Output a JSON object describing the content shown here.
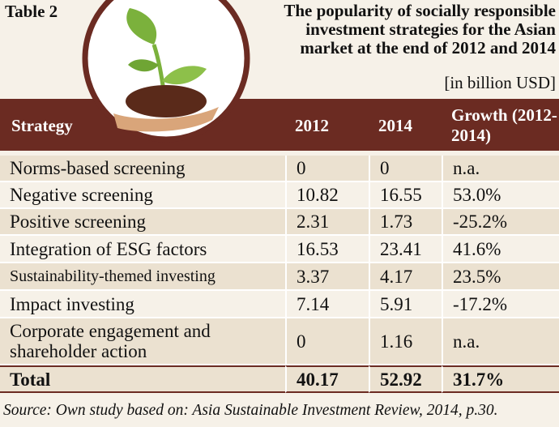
{
  "header": {
    "label": "Table 2",
    "title_lines": [
      "The popularity of socially responsible",
      "investment strategies for the Asian",
      "market at the end of 2012 and 2014"
    ],
    "unit": "[in billion USD]"
  },
  "table": {
    "columns": [
      "Strategy",
      "2012",
      "2014",
      "Growth (2012-2014)"
    ],
    "rows": [
      [
        "Norms-based screening",
        "0",
        "0",
        "n.a."
      ],
      [
        "Negative screening",
        "10.82",
        "16.55",
        "53.0%"
      ],
      [
        "Positive screening",
        "2.31",
        "1.73",
        "-25.2%"
      ],
      [
        "Integration of ESG factors",
        "16.53",
        "23.41",
        "41.6%"
      ],
      [
        "Sustainability-themed investing",
        "3.37",
        "4.17",
        "23.5%"
      ],
      [
        "Impact investing",
        "7.14",
        "5.91",
        "-17.2%"
      ],
      [
        "Corporate engagement and shareholder action",
        "0",
        "1.16",
        "n.a."
      ]
    ],
    "total": [
      "Total",
      "40.17",
      "52.92",
      "31.7%"
    ]
  },
  "footer": {
    "source": "Source: Own study based on: Asia Sustainable Investment Review, 2014, p.30."
  }
}
